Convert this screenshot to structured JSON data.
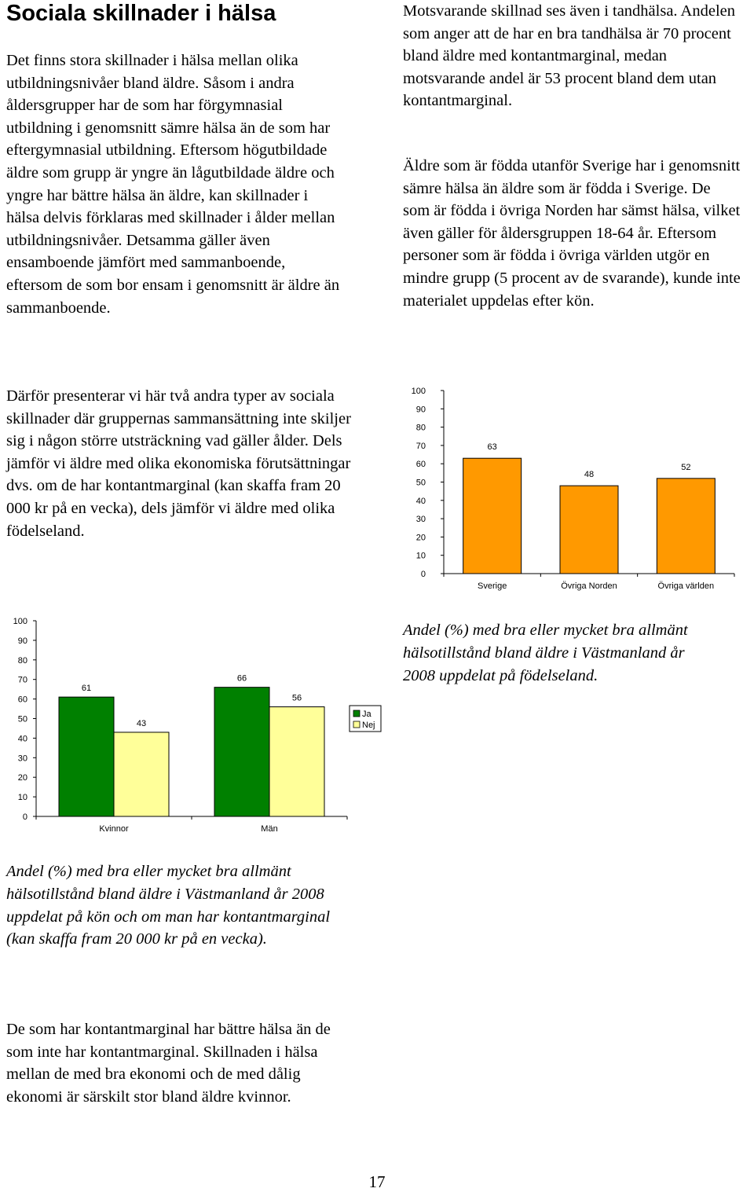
{
  "page": {
    "title": "Sociala skillnader i hälsa",
    "para1": "Det finns stora skillnader i hälsa mellan olika utbildningsnivåer bland äldre. Såsom i andra åldersgrupper har de som har förgymnasial utbildning i genomsnitt sämre hälsa än de som har eftergymnasial utbildning. Eftersom högutbildade äldre som grupp är yngre än lågutbildade äldre och yngre har bättre hälsa än äldre, kan skillnader i hälsa delvis förklaras med skillnader i ålder mellan utbildningsnivåer. Detsamma gäller även ensamboende jämfört med sammanboende, eftersom de som bor ensam i genomsnitt är äldre än sammanboende.",
    "para2": "Därför presenterar vi här två andra typer av sociala skillnader där gruppernas sammansättning inte skiljer sig i någon större utsträckning vad gäller ålder. Dels jämför vi äldre med olika ekonomiska förutsättningar dvs. om de har kontantmarginal (kan skaffa fram 20 000 kr på en vecka), dels jämför vi äldre med olika födelseland.",
    "para_right1": "Motsvarande skillnad ses även i tandhälsa. Andelen som anger att de har en bra tandhälsa är 70 procent bland äldre med kontantmarginal, medan motsvarande andel är 53 procent bland dem utan kontantmarginal.",
    "para_right2": "Äldre som är födda utanför Sverige har i genomsnitt sämre hälsa än äldre som är födda i Sverige. De som är födda i övriga Norden har sämst hälsa, vilket även gäller för åldersgruppen 18-64 år. Eftersom personer som är födda i övriga världen utgör en mindre grupp (5 procent av de svarande), kunde inte materialet uppdelas efter kön.",
    "caption_right": "Andel (%) med bra eller mycket bra allmänt hälsotillstånd bland äldre i Västmanland år 2008 uppdelat på födelseland.",
    "caption_left": "Andel (%) med bra eller mycket bra allmänt hälsotillstånd bland äldre i Västmanland år 2008 uppdelat på kön och om man har kontantmarginal (kan skaffa fram 20 000 kr på en vecka).",
    "para_bottom": "De som har kontantmarginal har bättre hälsa än de som inte har kontantmarginal. Skillnaden i hälsa mellan de med bra ekonomi och de med dålig ekonomi är särskilt stor bland äldre kvinnor.",
    "page_number": "17"
  },
  "colors": {
    "orange": "#FF9900",
    "green": "#008000",
    "light_yellow": "#FFFF99"
  },
  "chart_data": [
    {
      "type": "bar",
      "categories": [
        "Sverige",
        "Övriga Norden",
        "Övriga världen"
      ],
      "values": [
        63,
        48,
        52
      ],
      "data_labels": [
        "63",
        "48",
        "52"
      ],
      "y_ticks": [
        "0",
        "10",
        "20",
        "30",
        "40",
        "50",
        "60",
        "70",
        "80",
        "90",
        "100"
      ],
      "ylim": [
        0,
        100
      ],
      "grid": false,
      "legend": "none",
      "color": "#FF9900"
    },
    {
      "type": "bar",
      "categories": [
        "Kvinnor",
        "Män"
      ],
      "series": [
        {
          "name": "Ja",
          "values": [
            61,
            66
          ],
          "color": "#008000"
        },
        {
          "name": "Nej",
          "values": [
            43,
            56
          ],
          "color": "#FFFF99"
        }
      ],
      "data_labels": [
        [
          "61",
          "66"
        ],
        [
          "43",
          "56"
        ]
      ],
      "y_ticks": [
        "0",
        "10",
        "20",
        "30",
        "40",
        "50",
        "60",
        "70",
        "80",
        "90",
        "100"
      ],
      "ylim": [
        0,
        100
      ],
      "grid": false,
      "legend": "right"
    }
  ]
}
